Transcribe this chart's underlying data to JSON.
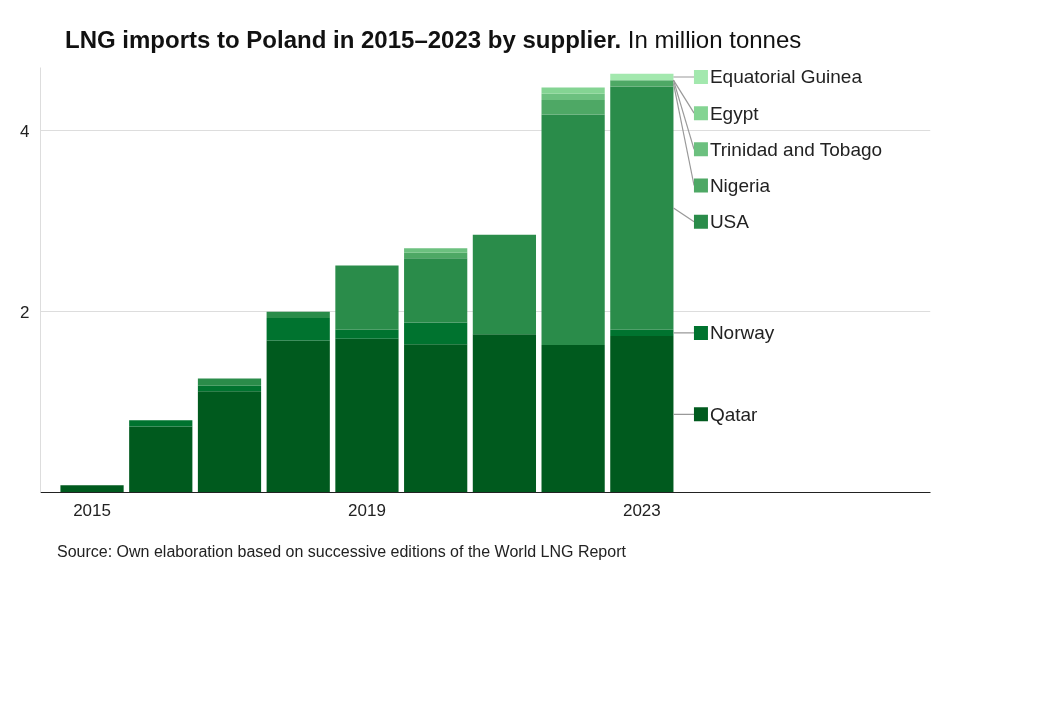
{
  "chart_data": {
    "type": "bar",
    "stacked": true,
    "title": "LNG imports to Poland in 2015–2023 by supplier.",
    "subtitle": "In million tonnes",
    "categories": [
      "2015",
      null,
      null,
      null,
      "2019",
      null,
      null,
      null,
      "2023"
    ],
    "series": [
      {
        "name": "Qatar",
        "color": "#005a1e",
        "values": [
          0.08,
          0.73,
          1.12,
          1.68,
          1.7,
          1.64,
          1.75,
          1.63,
          1.73
        ]
      },
      {
        "name": "Norway",
        "color": "#00732f",
        "values": [
          0,
          0.07,
          0.06,
          0.25,
          0.1,
          0.24,
          0,
          0,
          0.07
        ]
      },
      {
        "name": "USA",
        "color": "#2a8c4a",
        "values": [
          0,
          0,
          0.08,
          0.07,
          0.71,
          0.71,
          1.1,
          2.55,
          2.69
        ]
      },
      {
        "name": "Nigeria",
        "color": "#4ea865",
        "values": [
          0,
          0,
          0,
          0,
          0,
          0.06,
          0,
          0.16,
          0.07
        ]
      },
      {
        "name": "Trinidad and Tobago",
        "color": "#6cc07f",
        "values": [
          0,
          0,
          0,
          0,
          0,
          0.05,
          0,
          0.07,
          0
        ]
      },
      {
        "name": "Egypt",
        "color": "#84d493",
        "values": [
          0,
          0,
          0,
          0,
          0,
          0,
          0,
          0.07,
          0
        ]
      },
      {
        "name": "Equatorial Guinea",
        "color": "#a3e8ae",
        "values": [
          0,
          0,
          0,
          0,
          0,
          0,
          0,
          0,
          0.07
        ]
      }
    ],
    "ylim": [
      0,
      4.7
    ],
    "yticks": [
      2,
      4
    ],
    "grid": "y",
    "legend": "right",
    "annotations": [
      "Source: Own elaboration based on successive editions of the World LNG Report"
    ]
  }
}
